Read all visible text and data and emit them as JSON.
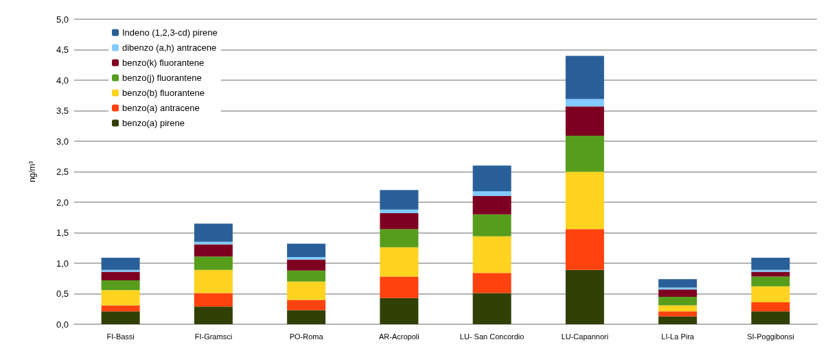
{
  "chart_data": {
    "type": "bar",
    "stacked": true,
    "ylabel": "ng/m³",
    "categories": [
      "FI-Bassi",
      "FI-Gramsci",
      "PO-Roma",
      "AR-Acropoli",
      "LU- San Concordio",
      "LU-Capannori",
      "LI-La Pira",
      "SI-Poggibonsi"
    ],
    "series": [
      {
        "name": "benzo(a) pirene",
        "color": "#314004",
        "values": [
          0.21,
          0.29,
          0.23,
          0.43,
          0.51,
          0.89,
          0.13,
          0.21
        ]
      },
      {
        "name": "benzo(a) antracene",
        "color": "#ff420e",
        "values": [
          0.1,
          0.22,
          0.17,
          0.35,
          0.33,
          0.67,
          0.08,
          0.15
        ]
      },
      {
        "name": "benzo(b) fluorantene",
        "color": "#ffd320",
        "values": [
          0.25,
          0.38,
          0.3,
          0.48,
          0.6,
          0.94,
          0.1,
          0.26
        ]
      },
      {
        "name": "benzo(j) fluorantene",
        "color": "#579d1c",
        "values": [
          0.16,
          0.22,
          0.18,
          0.3,
          0.36,
          0.59,
          0.14,
          0.16
        ]
      },
      {
        "name": "benzo(k) fluorantene",
        "color": "#7e0021",
        "values": [
          0.14,
          0.2,
          0.18,
          0.26,
          0.3,
          0.48,
          0.12,
          0.08
        ]
      },
      {
        "name": "dibenzo (a,h) antracene",
        "color": "#83caff",
        "values": [
          0.03,
          0.04,
          0.04,
          0.06,
          0.08,
          0.12,
          0.03,
          0.03
        ]
      },
      {
        "name": "Indeno (1,2,3-cd) pirene",
        "color": "#2a6099",
        "values": [
          0.2,
          0.3,
          0.22,
          0.32,
          0.42,
          0.71,
          0.14,
          0.2
        ]
      }
    ],
    "ylim": [
      0,
      5
    ],
    "yticks": [
      {
        "value": 0,
        "label": "0,0"
      },
      {
        "value": 0.5,
        "label": "0,5"
      },
      {
        "value": 1,
        "label": "1,0"
      },
      {
        "value": 1.5,
        "label": "1,5"
      },
      {
        "value": 2,
        "label": "2,0"
      },
      {
        "value": 2.5,
        "label": "2,5"
      },
      {
        "value": 3,
        "label": "3,0"
      },
      {
        "value": 3.5,
        "label": "3,5"
      },
      {
        "value": 4,
        "label": "4,0"
      },
      {
        "value": 4.5,
        "label": "4,5"
      },
      {
        "value": 5,
        "label": "5,0"
      }
    ],
    "grid": "y",
    "legend": "top left"
  }
}
